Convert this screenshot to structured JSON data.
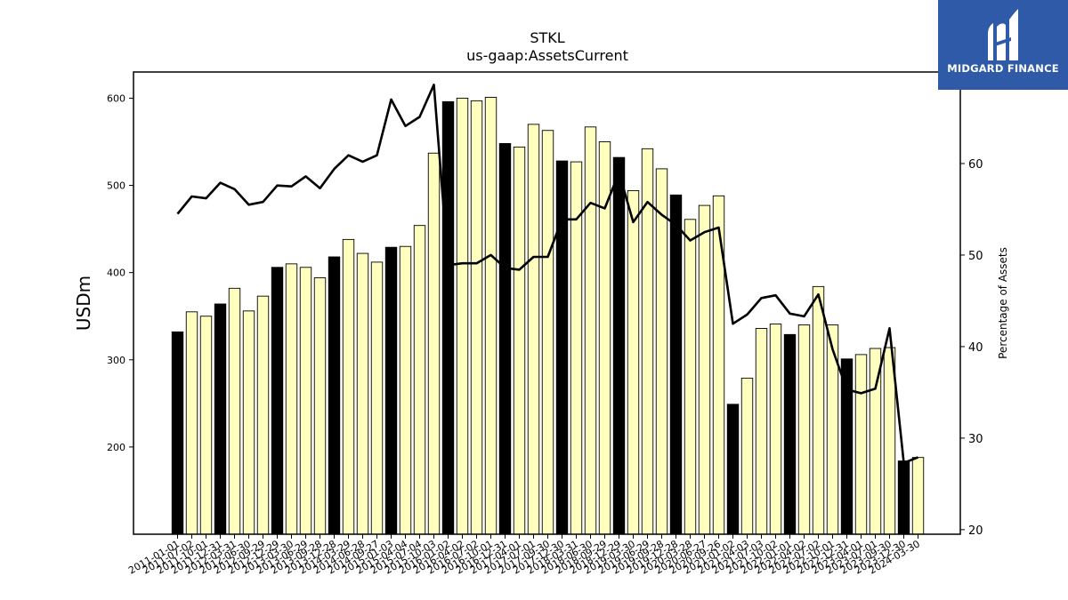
{
  "header": {
    "ticker": "STKL",
    "metric": "us-gaap:AssetsCurrent"
  },
  "logo": {
    "name": "midgard-finance-logo",
    "text": "MIDGARD FINANCE",
    "background": "#2e5aa8"
  },
  "chart_data": {
    "type": "bar",
    "title": "STKL",
    "subtitle": "us-gaap:AssetsCurrent",
    "ylabel": "USDm",
    "y2label": "Percentage of Assets",
    "ylim": [
      100,
      630
    ],
    "y2lim": [
      19.5,
      70
    ],
    "yticks": [
      200,
      300,
      400,
      500,
      600
    ],
    "y2ticks": [
      20,
      30,
      40,
      50,
      60
    ],
    "grid": false,
    "legend": "none",
    "colors": {
      "bar_fill": "#ffffc0",
      "highlight_fill": "#000000",
      "bar_edge": "#000000",
      "line": "#000000"
    },
    "categories": [
      "2011-01-01",
      "2011-07-02",
      "2011-10-01",
      "2011-12-31",
      "2012-03-31",
      "2012-06-30",
      "2012-09-29",
      "2012-12-29",
      "2013-03-30",
      "2013-06-29",
      "2013-09-28",
      "2013-12-28",
      "2014-03-29",
      "2014-06-28",
      "2014-09-27",
      "2015-01-03",
      "2015-04-04",
      "2015-07-04",
      "2015-10-03",
      "2016-01-02",
      "2016-04-02",
      "2016-07-02",
      "2016-10-01",
      "2016-12-31",
      "2017-04-01",
      "2017-07-01",
      "2017-09-30",
      "2017-12-30",
      "2018-03-31",
      "2018-06-30",
      "2018-09-29",
      "2018-12-29",
      "2019-03-30",
      "2019-06-29",
      "2019-09-28",
      "2019-12-28",
      "2020-03-28",
      "2020-06-27",
      "2020-09-26",
      "2021-01-02",
      "2021-04-03",
      "2021-07-03",
      "2021-10-02",
      "2022-01-01",
      "2022-04-02",
      "2022-07-02",
      "2022-10-01",
      "2022-12-31",
      "2023-04-01",
      "2023-07-01",
      "2023-09-30",
      "2023-12-30",
      "2024-03-30"
    ],
    "tick_labels": [
      "2011-01-01",
      "2011-07-02",
      "2011-10-01",
      "2011-12-31",
      "2012-03-31",
      "2012-06-30",
      "2012-09-29",
      "2012-12-29",
      "2013-03-30",
      "2013-06-29",
      "2013-09-28",
      "2013-12-28",
      "2014-03-29",
      "2014-06-28",
      "2014-09-27",
      "2015-01-03",
      "2015-04-04",
      "2015-07-04",
      "2015-10-03",
      "2016-01-02",
      "2016-04-02",
      "2016-07-02",
      "2016-10-01",
      "2016-12-31",
      "2017-04-01",
      "2017-07-01",
      "2017-09-30",
      "2017-12-30",
      "2018-03-31",
      "2018-06-30",
      "2018-09-29",
      "2018-12-29",
      "2019-03-30",
      "2019-06-29",
      "2019-09-28",
      "2019-12-28",
      "2020-03-28",
      "2020-06-27",
      "2020-09-26",
      "2021-01-02",
      "2021-04-03",
      "2021-07-03",
      "2021-10-02",
      "2022-01-01",
      "2022-04-02",
      "2022-07-02",
      "2022-10-01",
      "2022-12-31",
      "2023-04-01",
      "2023-07-01",
      "2023-09-30",
      "2023-12-30",
      "2024-03-30"
    ],
    "highlight": [
      true,
      false,
      false,
      true,
      false,
      false,
      false,
      true,
      false,
      false,
      false,
      true,
      false,
      false,
      false,
      true,
      false,
      false,
      false,
      true,
      false,
      false,
      false,
      true,
      false,
      false,
      false,
      true,
      false,
      false,
      false,
      true,
      false,
      false,
      false,
      true,
      false,
      false,
      false,
      true,
      false,
      false,
      false,
      true,
      false,
      false,
      false,
      true,
      false,
      false,
      false,
      true,
      false
    ],
    "series": [
      {
        "type": "bar",
        "axis": "left",
        "values": [
          332,
          355,
          350,
          364,
          382,
          356,
          373,
          406,
          410,
          406,
          394,
          418,
          438,
          422,
          412,
          429,
          430,
          454,
          537,
          596,
          600,
          597,
          601,
          548,
          544,
          570,
          563,
          528,
          527,
          567,
          550,
          532,
          494,
          542,
          519,
          489,
          461,
          477,
          488,
          249,
          279,
          336,
          341,
          329,
          340,
          384,
          340,
          301,
          306,
          313,
          314,
          184,
          188
        ]
      },
      {
        "type": "line",
        "axis": "right",
        "values": [
          54.5,
          56.4,
          56.2,
          57.9,
          57.2,
          55.5,
          55.8,
          57.6,
          57.5,
          58.6,
          57.3,
          59.4,
          60.9,
          60.2,
          60.9,
          67.0,
          64.1,
          65.1,
          68.6,
          48.9,
          49.1,
          49.1,
          50.0,
          48.6,
          48.4,
          49.8,
          49.8,
          53.9,
          53.9,
          55.7,
          55.1,
          59.0,
          53.6,
          55.8,
          54.4,
          53.3,
          51.6,
          52.5,
          53.0,
          42.5,
          43.5,
          45.3,
          45.6,
          43.6,
          43.3,
          45.7,
          39.7,
          35.3,
          34.9,
          35.4,
          42.0,
          27.3,
          27.9
        ]
      }
    ]
  }
}
